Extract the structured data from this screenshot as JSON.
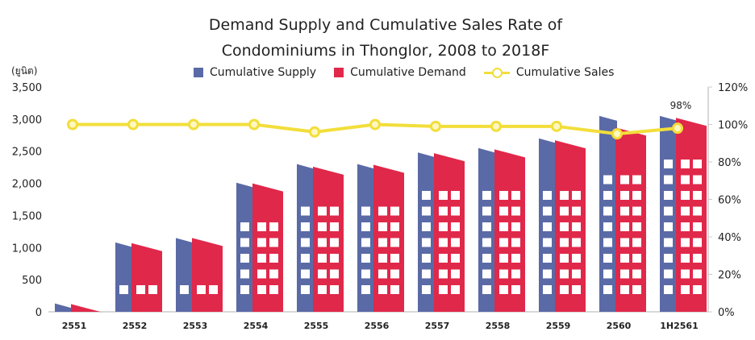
{
  "chart_data": {
    "type": "bar",
    "title_line1": "Demand Supply and Cumulative Sales Rate of",
    "title_line2": "Condominiums in Thonglor, 2008 to 2018F",
    "ylabel": "(ยูนิต)",
    "ylim": [
      0,
      3500
    ],
    "y2lim": [
      0,
      120
    ],
    "yticks": [
      "0",
      "500",
      "1,000",
      "1,500",
      "2,000",
      "2,500",
      "3,000",
      "3,500"
    ],
    "y2ticks": [
      "0%",
      "20%",
      "40%",
      "60%",
      "80%",
      "100%",
      "120%"
    ],
    "categories": [
      "2551",
      "2552",
      "2553",
      "2554",
      "2555",
      "2556",
      "2557",
      "2558",
      "2559",
      "2560",
      "1H2561"
    ],
    "series": [
      {
        "name": "Cumulative Supply",
        "axis": "left",
        "color": "#5a6aa6",
        "values": [
          130,
          1080,
          1150,
          2010,
          2300,
          2300,
          2480,
          2550,
          2700,
          3050,
          3050
        ]
      },
      {
        "name": "Cumulative Demand",
        "axis": "left",
        "color": "#e0284a",
        "values": [
          120,
          1070,
          1150,
          2000,
          2260,
          2290,
          2470,
          2530,
          2670,
          2870,
          3020
        ]
      },
      {
        "name": "Cumulative Sales",
        "axis": "right",
        "color": "#f2de3a",
        "values": [
          100,
          100,
          100,
          100,
          96,
          100,
          99,
          99,
          99,
          95,
          98
        ]
      }
    ],
    "annotations": [
      "98%"
    ],
    "legend": "top"
  }
}
